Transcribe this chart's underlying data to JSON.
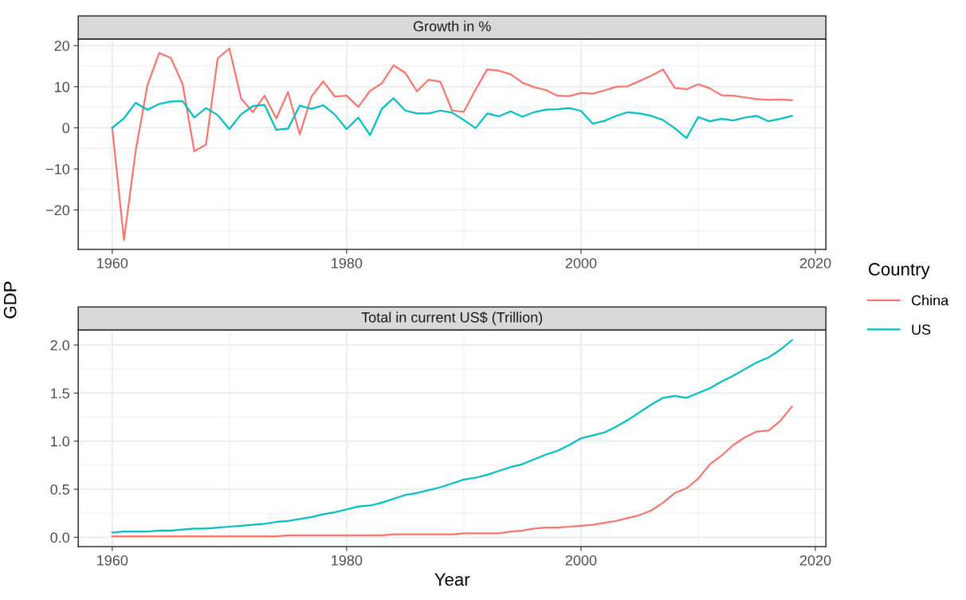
{
  "chart_data": [
    {
      "type": "line",
      "title": "Growth in %",
      "ylabel": "GDP",
      "legend_title": "Country",
      "legend": "right",
      "grid": true,
      "x": [
        1960,
        1961,
        1962,
        1963,
        1964,
        1965,
        1966,
        1967,
        1968,
        1969,
        1970,
        1971,
        1972,
        1973,
        1974,
        1975,
        1976,
        1977,
        1978,
        1979,
        1980,
        1981,
        1982,
        1983,
        1984,
        1985,
        1986,
        1987,
        1988,
        1989,
        1990,
        1991,
        1992,
        1993,
        1994,
        1995,
        1996,
        1997,
        1998,
        1999,
        2000,
        2001,
        2002,
        2003,
        2004,
        2005,
        2006,
        2007,
        2008,
        2009,
        2010,
        2011,
        2012,
        2013,
        2014,
        2015,
        2016,
        2017,
        2018
      ],
      "xlim": [
        1957.1,
        2020.9
      ],
      "xticks": [
        1960,
        1980,
        2000,
        2020
      ],
      "ylim": [
        -29.6,
        21.6
      ],
      "yticks": [
        {
          "value": -20,
          "label": "−20"
        },
        {
          "value": -10,
          "label": "−10"
        },
        0,
        10,
        20
      ],
      "series": [
        {
          "name": "China",
          "color": "#f8766d",
          "values": [
            0,
            -27.3,
            -5.6,
            10.3,
            18.2,
            17.0,
            10.7,
            -5.7,
            -4.1,
            16.9,
            19.3,
            7.1,
            3.8,
            7.8,
            2.3,
            8.7,
            -1.6,
            7.6,
            11.3,
            7.6,
            7.8,
            5.1,
            9.0,
            10.8,
            15.2,
            13.4,
            8.9,
            11.7,
            11.2,
            4.2,
            3.9,
            9.3,
            14.2,
            13.9,
            13.0,
            11.0,
            9.9,
            9.2,
            7.8,
            7.7,
            8.5,
            8.3,
            9.1,
            10.0,
            10.1,
            11.4,
            12.7,
            14.2,
            9.7,
            9.4,
            10.6,
            9.6,
            7.9,
            7.8,
            7.4,
            7.0,
            6.8,
            6.9,
            6.7
          ]
        },
        {
          "name": "US",
          "color": "#00bfc4",
          "values": [
            0,
            2.3,
            6.1,
            4.4,
            5.8,
            6.4,
            6.5,
            2.5,
            4.8,
            3.1,
            -0.3,
            3.3,
            5.3,
            5.6,
            -0.5,
            -0.2,
            5.4,
            4.6,
            5.5,
            3.2,
            -0.3,
            2.5,
            -1.8,
            4.6,
            7.2,
            4.2,
            3.5,
            3.5,
            4.2,
            3.7,
            1.9,
            -0.1,
            3.5,
            2.8,
            4.0,
            2.7,
            3.8,
            4.4,
            4.5,
            4.8,
            4.1,
            1.0,
            1.7,
            2.9,
            3.8,
            3.5,
            2.9,
            1.9,
            -0.1,
            -2.5,
            2.6,
            1.6,
            2.2,
            1.8,
            2.5,
            2.9,
            1.6,
            2.2,
            2.9
          ]
        }
      ]
    },
    {
      "type": "line",
      "title": "Total in current US$ (Trillion)",
      "xlabel": "Year",
      "grid": true,
      "x": [
        1960,
        1961,
        1962,
        1963,
        1964,
        1965,
        1966,
        1967,
        1968,
        1969,
        1970,
        1971,
        1972,
        1973,
        1974,
        1975,
        1976,
        1977,
        1978,
        1979,
        1980,
        1981,
        1982,
        1983,
        1984,
        1985,
        1986,
        1987,
        1988,
        1989,
        1990,
        1991,
        1992,
        1993,
        1994,
        1995,
        1996,
        1997,
        1998,
        1999,
        2000,
        2001,
        2002,
        2003,
        2004,
        2005,
        2006,
        2007,
        2008,
        2009,
        2010,
        2011,
        2012,
        2013,
        2014,
        2015,
        2016,
        2017,
        2018
      ],
      "xlim": [
        1957.1,
        2020.9
      ],
      "xticks": [
        1960,
        1980,
        2000,
        2020
      ],
      "ylim": [
        -0.097,
        2.156
      ],
      "yticks": [
        {
          "value": 0,
          "label": "0.0"
        },
        0.5,
        {
          "value": 1,
          "label": "1.0"
        },
        1.5,
        {
          "value": 2,
          "label": "2.0"
        }
      ],
      "series": [
        {
          "color": "#f8766d",
          "values": [
            0.01,
            0.01,
            0.01,
            0.01,
            0.01,
            0.01,
            0.01,
            0.01,
            0.01,
            0.01,
            0.01,
            0.01,
            0.01,
            0.01,
            0.01,
            0.02,
            0.02,
            0.02,
            0.02,
            0.02,
            0.02,
            0.02,
            0.02,
            0.02,
            0.03,
            0.03,
            0.03,
            0.03,
            0.03,
            0.03,
            0.04,
            0.04,
            0.04,
            0.04,
            0.06,
            0.07,
            0.09,
            0.1,
            0.1,
            0.11,
            0.12,
            0.13,
            0.15,
            0.17,
            0.2,
            0.23,
            0.28,
            0.36,
            0.46,
            0.51,
            0.61,
            0.76,
            0.85,
            0.96,
            1.04,
            1.1,
            1.11,
            1.21,
            1.36
          ]
        },
        {
          "color": "#00bfc4",
          "values": [
            0.05,
            0.06,
            0.06,
            0.06,
            0.07,
            0.07,
            0.08,
            0.09,
            0.09,
            0.1,
            0.11,
            0.12,
            0.13,
            0.14,
            0.16,
            0.17,
            0.19,
            0.21,
            0.24,
            0.26,
            0.29,
            0.32,
            0.33,
            0.36,
            0.4,
            0.44,
            0.46,
            0.49,
            0.52,
            0.56,
            0.6,
            0.62,
            0.65,
            0.69,
            0.73,
            0.76,
            0.81,
            0.86,
            0.9,
            0.96,
            1.03,
            1.06,
            1.09,
            1.15,
            1.22,
            1.3,
            1.38,
            1.45,
            1.47,
            1.45,
            1.5,
            1.55,
            1.62,
            1.68,
            1.75,
            1.82,
            1.87,
            1.95,
            2.05
          ]
        }
      ]
    }
  ]
}
